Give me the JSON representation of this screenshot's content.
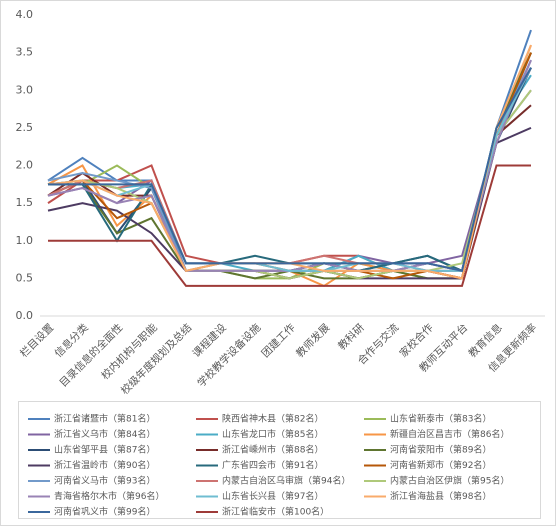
{
  "chart_data": {
    "type": "line",
    "categories": [
      "栏目设置",
      "信息分类",
      "目录信息的全面性",
      "校内机构与职能",
      "校级年度规划及总结",
      "课程建设",
      "学校教学设备设施",
      "团建工作",
      "教师发展",
      "教科研",
      "合作与交流",
      "家校合作",
      "教师互动平台",
      "教育信息",
      "信息更新频率"
    ],
    "ylim": [
      0,
      4
    ],
    "yticks": [
      {
        "value": 0,
        "label": "0.0"
      },
      {
        "value": 0.5,
        "label": "0.5"
      },
      {
        "value": 1,
        "label": "1.0"
      },
      {
        "value": 1.5,
        "label": "1.5"
      },
      {
        "value": 2,
        "label": "2.0"
      },
      {
        "value": 2.5,
        "label": "2.5"
      },
      {
        "value": 3,
        "label": "3.0"
      },
      {
        "value": 3.5,
        "label": "3.5"
      },
      {
        "value": 4,
        "label": "4.0"
      }
    ],
    "grid": false,
    "legend": "bottom",
    "series": [
      {
        "name": "浙江省诸暨市（第81名）",
        "color": "#4F81BD",
        "values": [
          1.8,
          2.1,
          1.8,
          1.8,
          0.7,
          0.7,
          0.7,
          0.6,
          0.7,
          0.7,
          0.7,
          0.7,
          0.6,
          2.5,
          3.8
        ]
      },
      {
        "name": "陕西省神木县（第82名）",
        "color": "#C0504D",
        "values": [
          1.5,
          1.8,
          1.8,
          2.0,
          0.8,
          0.7,
          0.7,
          0.7,
          0.8,
          0.8,
          0.6,
          0.7,
          0.6,
          2.4,
          3.5
        ]
      },
      {
        "name": "山东省新泰市（第83名）",
        "color": "#9BBB59",
        "values": [
          1.75,
          1.75,
          2.0,
          1.7,
          0.6,
          0.6,
          0.5,
          0.5,
          0.7,
          0.7,
          0.6,
          0.5,
          0.5,
          2.4,
          3.5
        ]
      },
      {
        "name": "浙江省义乌市（第84名）",
        "color": "#8064A2",
        "values": [
          1.6,
          1.7,
          1.5,
          1.8,
          0.6,
          0.6,
          0.6,
          0.5,
          0.6,
          0.8,
          0.7,
          0.7,
          0.8,
          2.4,
          3.0
        ]
      },
      {
        "name": "山东省龙口市（第85名）",
        "color": "#4BACC6",
        "values": [
          1.75,
          1.8,
          1.7,
          1.75,
          0.6,
          0.7,
          0.6,
          0.6,
          0.6,
          0.8,
          0.6,
          0.7,
          0.6,
          2.5,
          3.2
        ]
      },
      {
        "name": "新疆自治区昌吉市（第86名）",
        "color": "#F79646",
        "values": [
          1.75,
          2.0,
          1.2,
          1.6,
          0.6,
          0.7,
          0.7,
          0.6,
          0.4,
          0.7,
          0.6,
          0.6,
          0.5,
          2.4,
          3.6
        ]
      },
      {
        "name": "山东省邹平县（第87名）",
        "color": "#2C4D75",
        "values": [
          1.6,
          1.8,
          1.1,
          1.7,
          0.6,
          0.6,
          0.6,
          0.6,
          0.7,
          0.6,
          0.7,
          0.8,
          0.6,
          2.3,
          3.3
        ]
      },
      {
        "name": "浙江省嵊州市（第88名）",
        "color": "#772C2A",
        "values": [
          1.6,
          1.9,
          1.6,
          1.6,
          0.6,
          0.6,
          0.6,
          0.5,
          0.6,
          0.5,
          0.6,
          0.6,
          0.5,
          2.4,
          2.8
        ]
      },
      {
        "name": "河南省荥阳市（第89名）",
        "color": "#5F7530",
        "values": [
          1.75,
          1.75,
          1.1,
          1.3,
          0.6,
          0.6,
          0.5,
          0.6,
          0.5,
          0.5,
          0.6,
          0.5,
          0.5,
          2.5,
          3.5
        ]
      },
      {
        "name": "浙江省温岭市（第90名）",
        "color": "#4D3B62",
        "values": [
          1.4,
          1.5,
          1.4,
          1.1,
          0.6,
          0.6,
          0.6,
          0.6,
          0.6,
          0.5,
          0.5,
          0.5,
          0.5,
          2.3,
          2.5
        ]
      },
      {
        "name": "广东省四会市（第91名）",
        "color": "#276A7C",
        "values": [
          1.75,
          1.75,
          1.0,
          1.75,
          0.7,
          0.7,
          0.8,
          0.7,
          0.7,
          0.6,
          0.7,
          0.8,
          0.6,
          2.4,
          3.3
        ]
      },
      {
        "name": "河南省新郑市（第92名）",
        "color": "#B65708",
        "values": [
          1.6,
          1.8,
          1.3,
          1.5,
          0.6,
          0.6,
          0.6,
          0.6,
          0.6,
          0.6,
          0.5,
          0.6,
          0.5,
          2.4,
          3.5
        ]
      },
      {
        "name": "河南省义马市（第93名）",
        "color": "#729ACA",
        "values": [
          1.8,
          1.9,
          1.8,
          1.7,
          0.6,
          0.6,
          0.6,
          0.6,
          0.6,
          0.6,
          0.6,
          0.6,
          0.6,
          2.4,
          3.4
        ]
      },
      {
        "name": "内蒙古自治区乌审旗（第94名）",
        "color": "#CD7371",
        "values": [
          1.6,
          1.8,
          1.7,
          1.8,
          0.7,
          0.7,
          0.7,
          0.7,
          0.8,
          0.7,
          0.7,
          0.6,
          0.6,
          2.4,
          3.3
        ]
      },
      {
        "name": "内蒙古自治区伊旗（第95名）",
        "color": "#AFC97A",
        "values": [
          1.75,
          1.8,
          1.7,
          1.5,
          0.6,
          0.6,
          0.6,
          0.5,
          0.6,
          0.5,
          0.6,
          0.6,
          0.7,
          2.4,
          3.0
        ]
      },
      {
        "name": "青海省格尔木市（第96名）",
        "color": "#9983B5",
        "values": [
          1.6,
          1.7,
          1.5,
          1.6,
          0.6,
          0.6,
          0.6,
          0.6,
          0.7,
          0.6,
          0.6,
          0.7,
          0.6,
          2.3,
          3.4
        ]
      },
      {
        "name": "山东省长兴县（第97名）",
        "color": "#6FBDD1",
        "values": [
          1.75,
          1.8,
          1.6,
          1.75,
          0.7,
          0.7,
          0.7,
          0.6,
          0.6,
          0.7,
          0.7,
          0.6,
          0.6,
          2.4,
          3.3
        ]
      },
      {
        "name": "浙江省海盐县（第98名）",
        "color": "#F9AB6B",
        "values": [
          1.75,
          1.8,
          1.6,
          1.5,
          0.6,
          0.7,
          0.7,
          0.7,
          0.6,
          0.6,
          0.6,
          0.6,
          0.5,
          2.5,
          3.6
        ]
      },
      {
        "name": "河南省巩义市（第99名）",
        "color": "#3A679C",
        "values": [
          1.75,
          1.75,
          1.75,
          1.75,
          0.7,
          0.7,
          0.7,
          0.7,
          0.7,
          0.7,
          0.7,
          0.7,
          0.6,
          2.5,
          3.3
        ]
      },
      {
        "name": "浙江省临安市（第100名）",
        "color": "#9E3B38",
        "values": [
          1.0,
          1.0,
          1.0,
          1.0,
          0.4,
          0.4,
          0.4,
          0.4,
          0.4,
          0.4,
          0.4,
          0.4,
          0.4,
          2.0,
          2.0
        ]
      }
    ]
  }
}
